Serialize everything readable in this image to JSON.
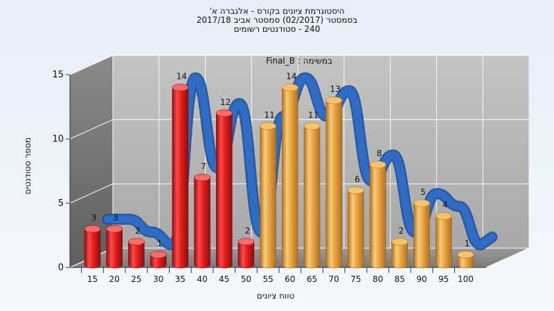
{
  "chart_data": {
    "type": "bar",
    "title": "היסטוגרמת ציונים בקורס - אלגברה א'",
    "subtitle_lines": [
      "בסמסטר  (02/2017)  סמסטר אביב 2017/18",
      "240 - סטודנטים רשומים"
    ],
    "annotation": "Final_B : במשימה",
    "xlabel": "טווח ציונים",
    "ylabel": "מספר סטודנטים",
    "ylim": [
      0,
      15
    ],
    "yticks": [
      0,
      5,
      10,
      15
    ],
    "categories": [
      "15",
      "20",
      "25",
      "30",
      "35",
      "40",
      "45",
      "50",
      "55",
      "60",
      "65",
      "70",
      "75",
      "80",
      "85",
      "90",
      "95",
      "100"
    ],
    "values": [
      3,
      3,
      2,
      1,
      14,
      7,
      12,
      2,
      11,
      14,
      11,
      13,
      6,
      8,
      2,
      5,
      4,
      1
    ],
    "colors": {
      "failing": "#dd1c1c",
      "passing": "#e7a63c",
      "trend": "#2f6cc6",
      "wall_back": "#b8b8b8",
      "wall_side": "#6e6e6e",
      "floor": "#8c8c8c"
    },
    "failing_count": 8,
    "grid": true,
    "trend_line": true
  }
}
